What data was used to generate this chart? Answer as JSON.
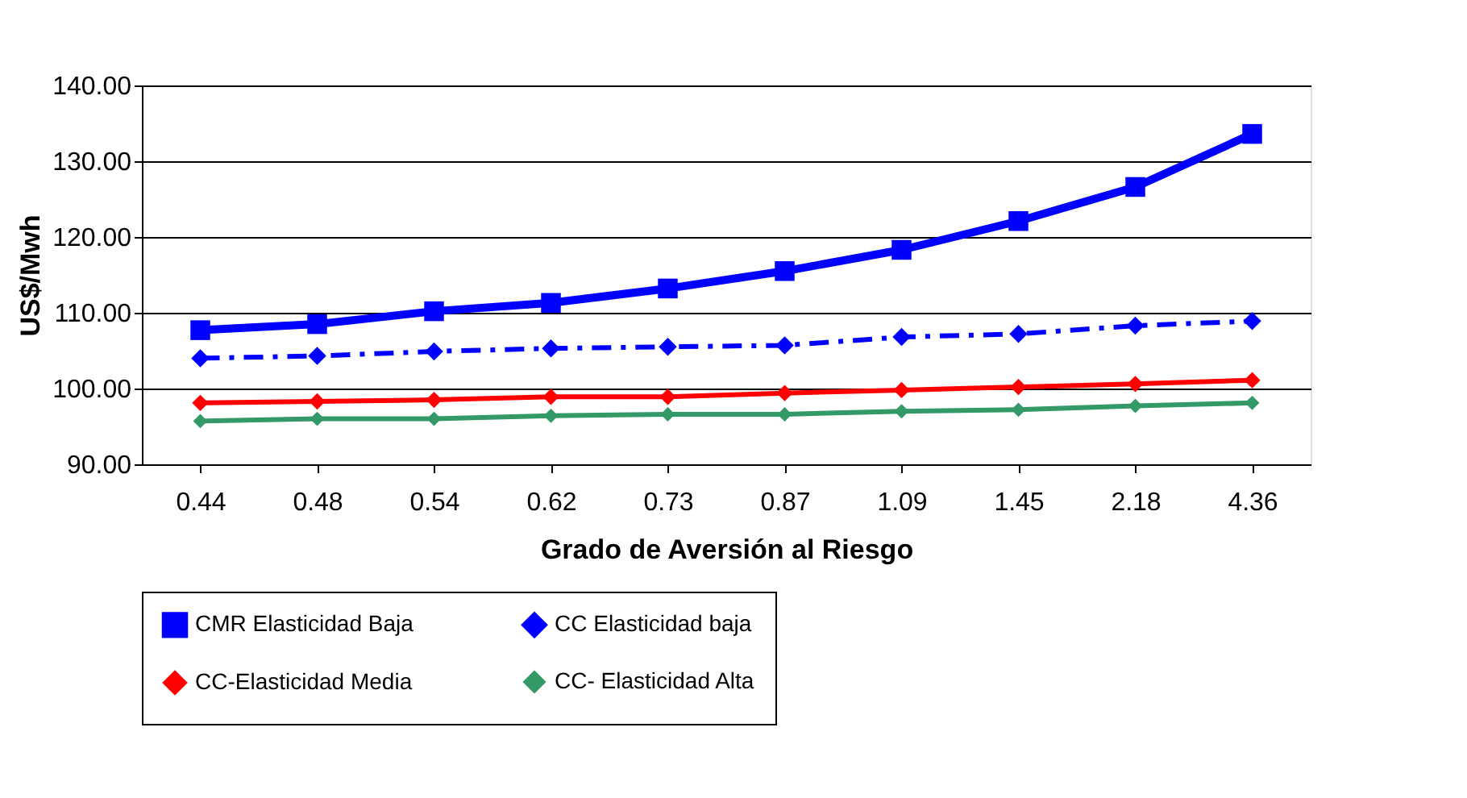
{
  "chart_data": {
    "type": "line",
    "xlabel": "Grado de Aversión al Riesgo",
    "ylabel": "US$/Mwh",
    "categories": [
      "0.44",
      "0.48",
      "0.54",
      "0.62",
      "0.73",
      "0.87",
      "1.09",
      "1.45",
      "2.18",
      "4.36"
    ],
    "ylim": [
      90,
      140
    ],
    "yticks": [
      {
        "value": 90,
        "label": "90.00"
      },
      {
        "value": 100,
        "label": "100.00"
      },
      {
        "value": 110,
        "label": "110.00"
      },
      {
        "value": 120,
        "label": "120.00"
      },
      {
        "value": 130,
        "label": "130.00"
      },
      {
        "value": 140,
        "label": "140.00"
      }
    ],
    "grid": "y",
    "legend": "bottom",
    "series": [
      {
        "name": "CMR Elasticidad Baja",
        "color": "#0000ff",
        "marker": "square",
        "line_style": "solid",
        "values": [
          107.7,
          108.5,
          110.2,
          111.3,
          113.2,
          115.5,
          118.3,
          122.1,
          126.6,
          133.6
        ]
      },
      {
        "name": "CC Elasticidad baja",
        "color": "#0000ff",
        "marker": "diamond",
        "line_style": "dashed",
        "values": [
          104.0,
          104.3,
          104.9,
          105.3,
          105.5,
          105.7,
          106.8,
          107.2,
          108.3,
          108.9
        ]
      },
      {
        "name": "CC-Elasticidad Media",
        "color": "#ff0000",
        "marker": "diamond",
        "line_style": "solid",
        "values": [
          98.1,
          98.3,
          98.5,
          98.9,
          98.9,
          99.4,
          99.8,
          100.2,
          100.6,
          101.1
        ]
      },
      {
        "name": "CC- Elasticidad Alta",
        "color": "#339966",
        "marker": "diamond",
        "line_style": "solid",
        "values": [
          95.7,
          96.0,
          96.0,
          96.4,
          96.6,
          96.6,
          97.0,
          97.2,
          97.7,
          98.1
        ]
      }
    ]
  }
}
